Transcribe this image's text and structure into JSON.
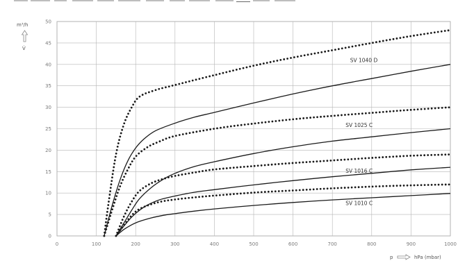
{
  "chart_data": {
    "type": "line",
    "title": "",
    "ylabel": "m³/h",
    "ylabel_symbol": "V̇",
    "xlabel_prefix": "p",
    "xlabel": "hPa (mbar)",
    "xlim": [
      0,
      1000
    ],
    "ylim": [
      0,
      50
    ],
    "xticks": [
      0,
      100,
      200,
      300,
      400,
      500,
      600,
      700,
      800,
      900,
      1000
    ],
    "yticks": [
      0,
      5,
      10,
      15,
      20,
      25,
      30,
      35,
      40,
      45,
      50
    ],
    "grid": true,
    "series": [
      {
        "name": "SV 1040 D",
        "style": "dotted",
        "x": [
          120,
          130,
          150,
          170,
          190,
          210,
          250,
          300,
          400,
          500,
          600,
          700,
          800,
          900,
          1000
        ],
        "y": [
          0,
          7,
          19,
          26,
          30,
          32.5,
          34,
          35.2,
          37.5,
          39.7,
          41.6,
          43.3,
          45,
          46.6,
          48
        ]
      },
      {
        "name": "",
        "style": "solid",
        "x": [
          120,
          140,
          160,
          180,
          200,
          220,
          250,
          300,
          350,
          400,
          500,
          600,
          700,
          800,
          900,
          1000
        ],
        "y": [
          0,
          7,
          13,
          17.5,
          20.5,
          22.5,
          24.5,
          26.3,
          27.7,
          28.8,
          31,
          33.1,
          35,
          36.7,
          38.4,
          40
        ]
      },
      {
        "name": "SV 1025 C",
        "style": "dotted",
        "x": [
          120,
          140,
          160,
          180,
          200,
          230,
          260,
          300,
          400,
          500,
          600,
          700,
          800,
          900,
          1000
        ],
        "y": [
          0,
          6,
          11.5,
          15.5,
          18.5,
          20.7,
          22,
          23.3,
          25,
          26.2,
          27.2,
          28,
          28.7,
          29.4,
          30
        ]
      },
      {
        "name": "",
        "style": "solid",
        "x": [
          150,
          170,
          190,
          210,
          240,
          270,
          300,
          350,
          400,
          500,
          600,
          700,
          800,
          900,
          1000
        ],
        "y": [
          0,
          3,
          6,
          8.7,
          11.3,
          13.2,
          14.6,
          16.2,
          17.3,
          19.2,
          20.8,
          22.1,
          23.1,
          24.1,
          25
        ]
      },
      {
        "name": "SV 1016 C",
        "style": "dotted",
        "x": [
          150,
          170,
          190,
          210,
          240,
          270,
          300,
          350,
          400,
          500,
          600,
          700,
          800,
          900,
          1000
        ],
        "y": [
          0,
          4.5,
          8,
          10.5,
          12.3,
          13.3,
          14,
          14.8,
          15.5,
          16.3,
          17,
          17.6,
          18.2,
          18.7,
          19
        ]
      },
      {
        "name": "",
        "style": "solid",
        "x": [
          150,
          170,
          190,
          210,
          230,
          260,
          300,
          350,
          400,
          500,
          600,
          700,
          800,
          900,
          1000
        ],
        "y": [
          0,
          2.3,
          4.4,
          6,
          7.2,
          8.4,
          9.3,
          10.2,
          10.8,
          11.9,
          12.9,
          13.8,
          14.6,
          15.4,
          16
        ]
      },
      {
        "name": "",
        "style": "dotted",
        "x": [
          150,
          170,
          190,
          210,
          240,
          270,
          300,
          350,
          400,
          500,
          600,
          700,
          800,
          900,
          1000
        ],
        "y": [
          0,
          2.5,
          4.8,
          6.3,
          7.4,
          8.1,
          8.5,
          9,
          9.4,
          10.1,
          10.6,
          11.1,
          11.5,
          11.8,
          12
        ]
      },
      {
        "name": "SV 1010 C",
        "style": "solid",
        "x": [
          150,
          170,
          190,
          210,
          240,
          270,
          300,
          350,
          400,
          500,
          600,
          700,
          800,
          900,
          1000
        ],
        "y": [
          0,
          1.5,
          2.6,
          3.4,
          4.2,
          4.8,
          5.2,
          5.8,
          6.3,
          7.1,
          7.8,
          8.4,
          8.9,
          9.4,
          9.9
        ]
      }
    ],
    "series_labels": [
      {
        "text": "SV 1040 D",
        "x": 780,
        "y": 40.5
      },
      {
        "text": "SV 1025 C",
        "x": 768,
        "y": 25.4
      },
      {
        "text": "SV 1016 C",
        "x": 768,
        "y": 14.7
      },
      {
        "text": "SV 1010 C",
        "x": 768,
        "y": 7.2
      }
    ],
    "line_color": "#1a1a1a"
  }
}
